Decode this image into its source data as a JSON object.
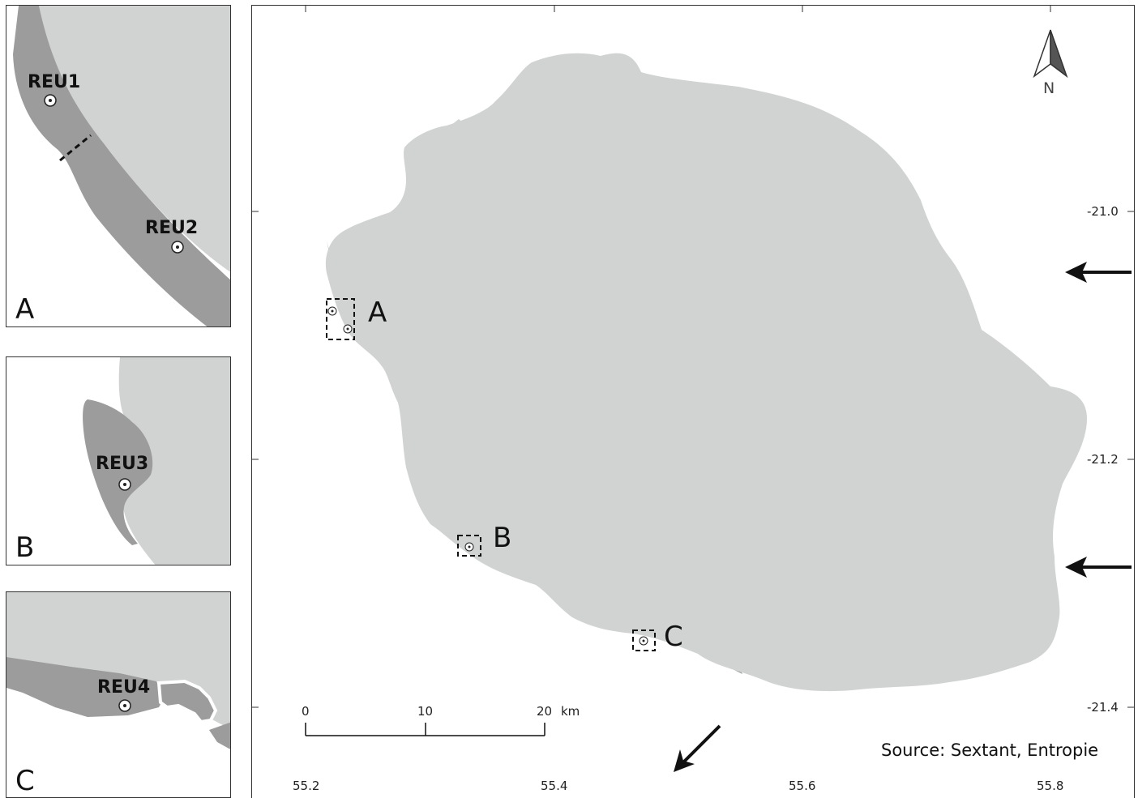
{
  "colors": {
    "land": "#d0d3d2",
    "reef": "#9b9c9b",
    "water": "#ffffff",
    "frame": "#333333"
  },
  "insets": [
    {
      "letter": "A",
      "sites": [
        "REU1",
        "REU2"
      ]
    },
    {
      "letter": "B",
      "sites": [
        "REU3"
      ]
    },
    {
      "letter": "C",
      "sites": [
        "REU4"
      ]
    }
  ],
  "main_map": {
    "boxes": [
      "A",
      "B",
      "C"
    ],
    "lat_ticks": [
      "-21.0",
      "-21.2",
      "-21.4"
    ],
    "lon_ticks": [
      "55.2",
      "55.4",
      "55.6",
      "55.8"
    ],
    "scale_bar": {
      "labels": [
        "0",
        "10",
        "20"
      ],
      "unit": "km"
    },
    "north_label": "N",
    "source": "Source: Sextant, Entropie",
    "arrows": [
      "east-arrow-1",
      "east-arrow-2",
      "southwest-arrow"
    ]
  }
}
